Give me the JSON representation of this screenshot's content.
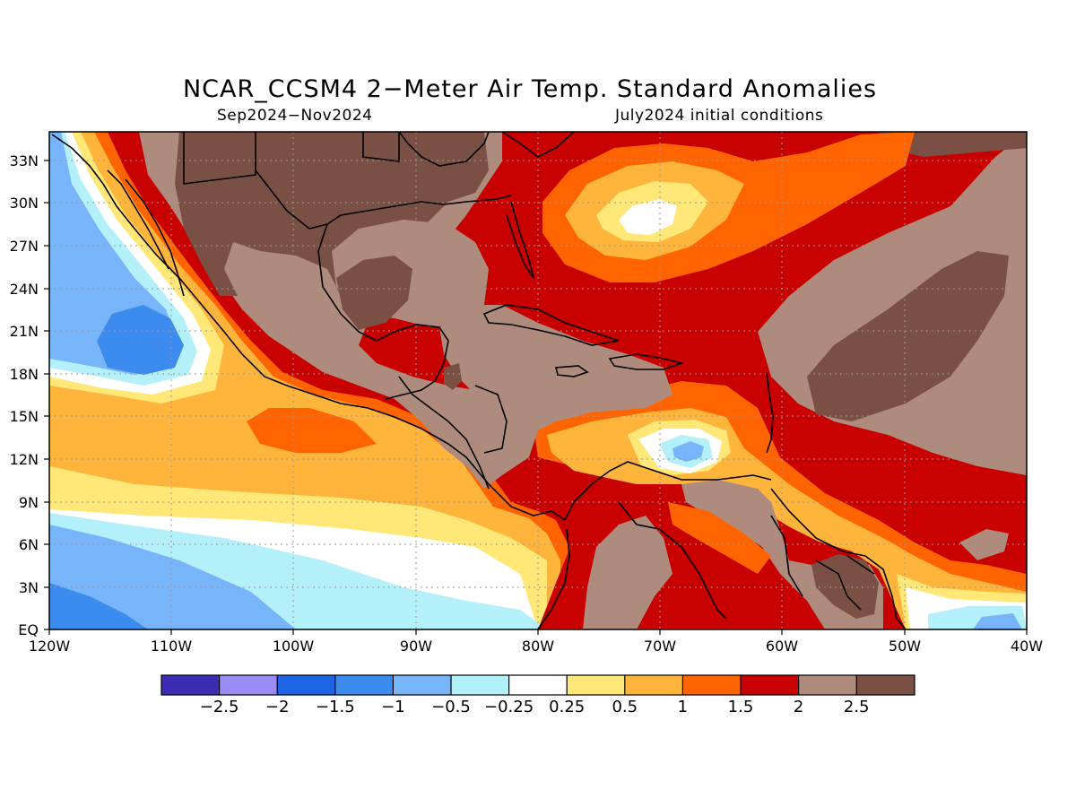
{
  "title": "NCAR_CCSM4 2−Meter Air Temp. Standard Anomalies",
  "subtitle_left": "Sep2024−Nov2024",
  "subtitle_right": "July2024 initial conditions",
  "axes": {
    "x_ticks": [
      "120W",
      "110W",
      "100W",
      "90W",
      "80W",
      "70W",
      "60W",
      "50W",
      "40W"
    ],
    "y_ticks": [
      "EQ",
      "3N",
      "6N",
      "9N",
      "12N",
      "15N",
      "18N",
      "21N",
      "24N",
      "27N",
      "30N",
      "33N"
    ],
    "lon_range": [
      -120,
      -40
    ],
    "lat_range": [
      0,
      35
    ],
    "grid": true
  },
  "colorbar": {
    "colors": [
      "#3c2cb4",
      "#9b8cf5",
      "#1f64e6",
      "#3c8cf0",
      "#78b4fa",
      "#b4f0fa",
      "#ffffff",
      "#ffe878",
      "#ffb43c",
      "#ff6400",
      "#c80000",
      "#af8b7d",
      "#7a5045"
    ],
    "labels": [
      "−2.5",
      "−2",
      "−1.5",
      "−1",
      "−0.5",
      "−0.25",
      "0.25",
      "0.5",
      "1",
      "1.5",
      "2",
      "2.5"
    ]
  },
  "map_colors": {
    "land_brown": "#af8b7d",
    "dark_brown": "#7a5045",
    "deep_red": "#c80000",
    "orange": "#ff6400",
    "light_orange": "#ffb43c",
    "yellow": "#ffe878",
    "white": "#ffffff",
    "pale_cyan": "#b4f0fa",
    "light_blue": "#78b4fa",
    "blue": "#3c8cf0"
  }
}
